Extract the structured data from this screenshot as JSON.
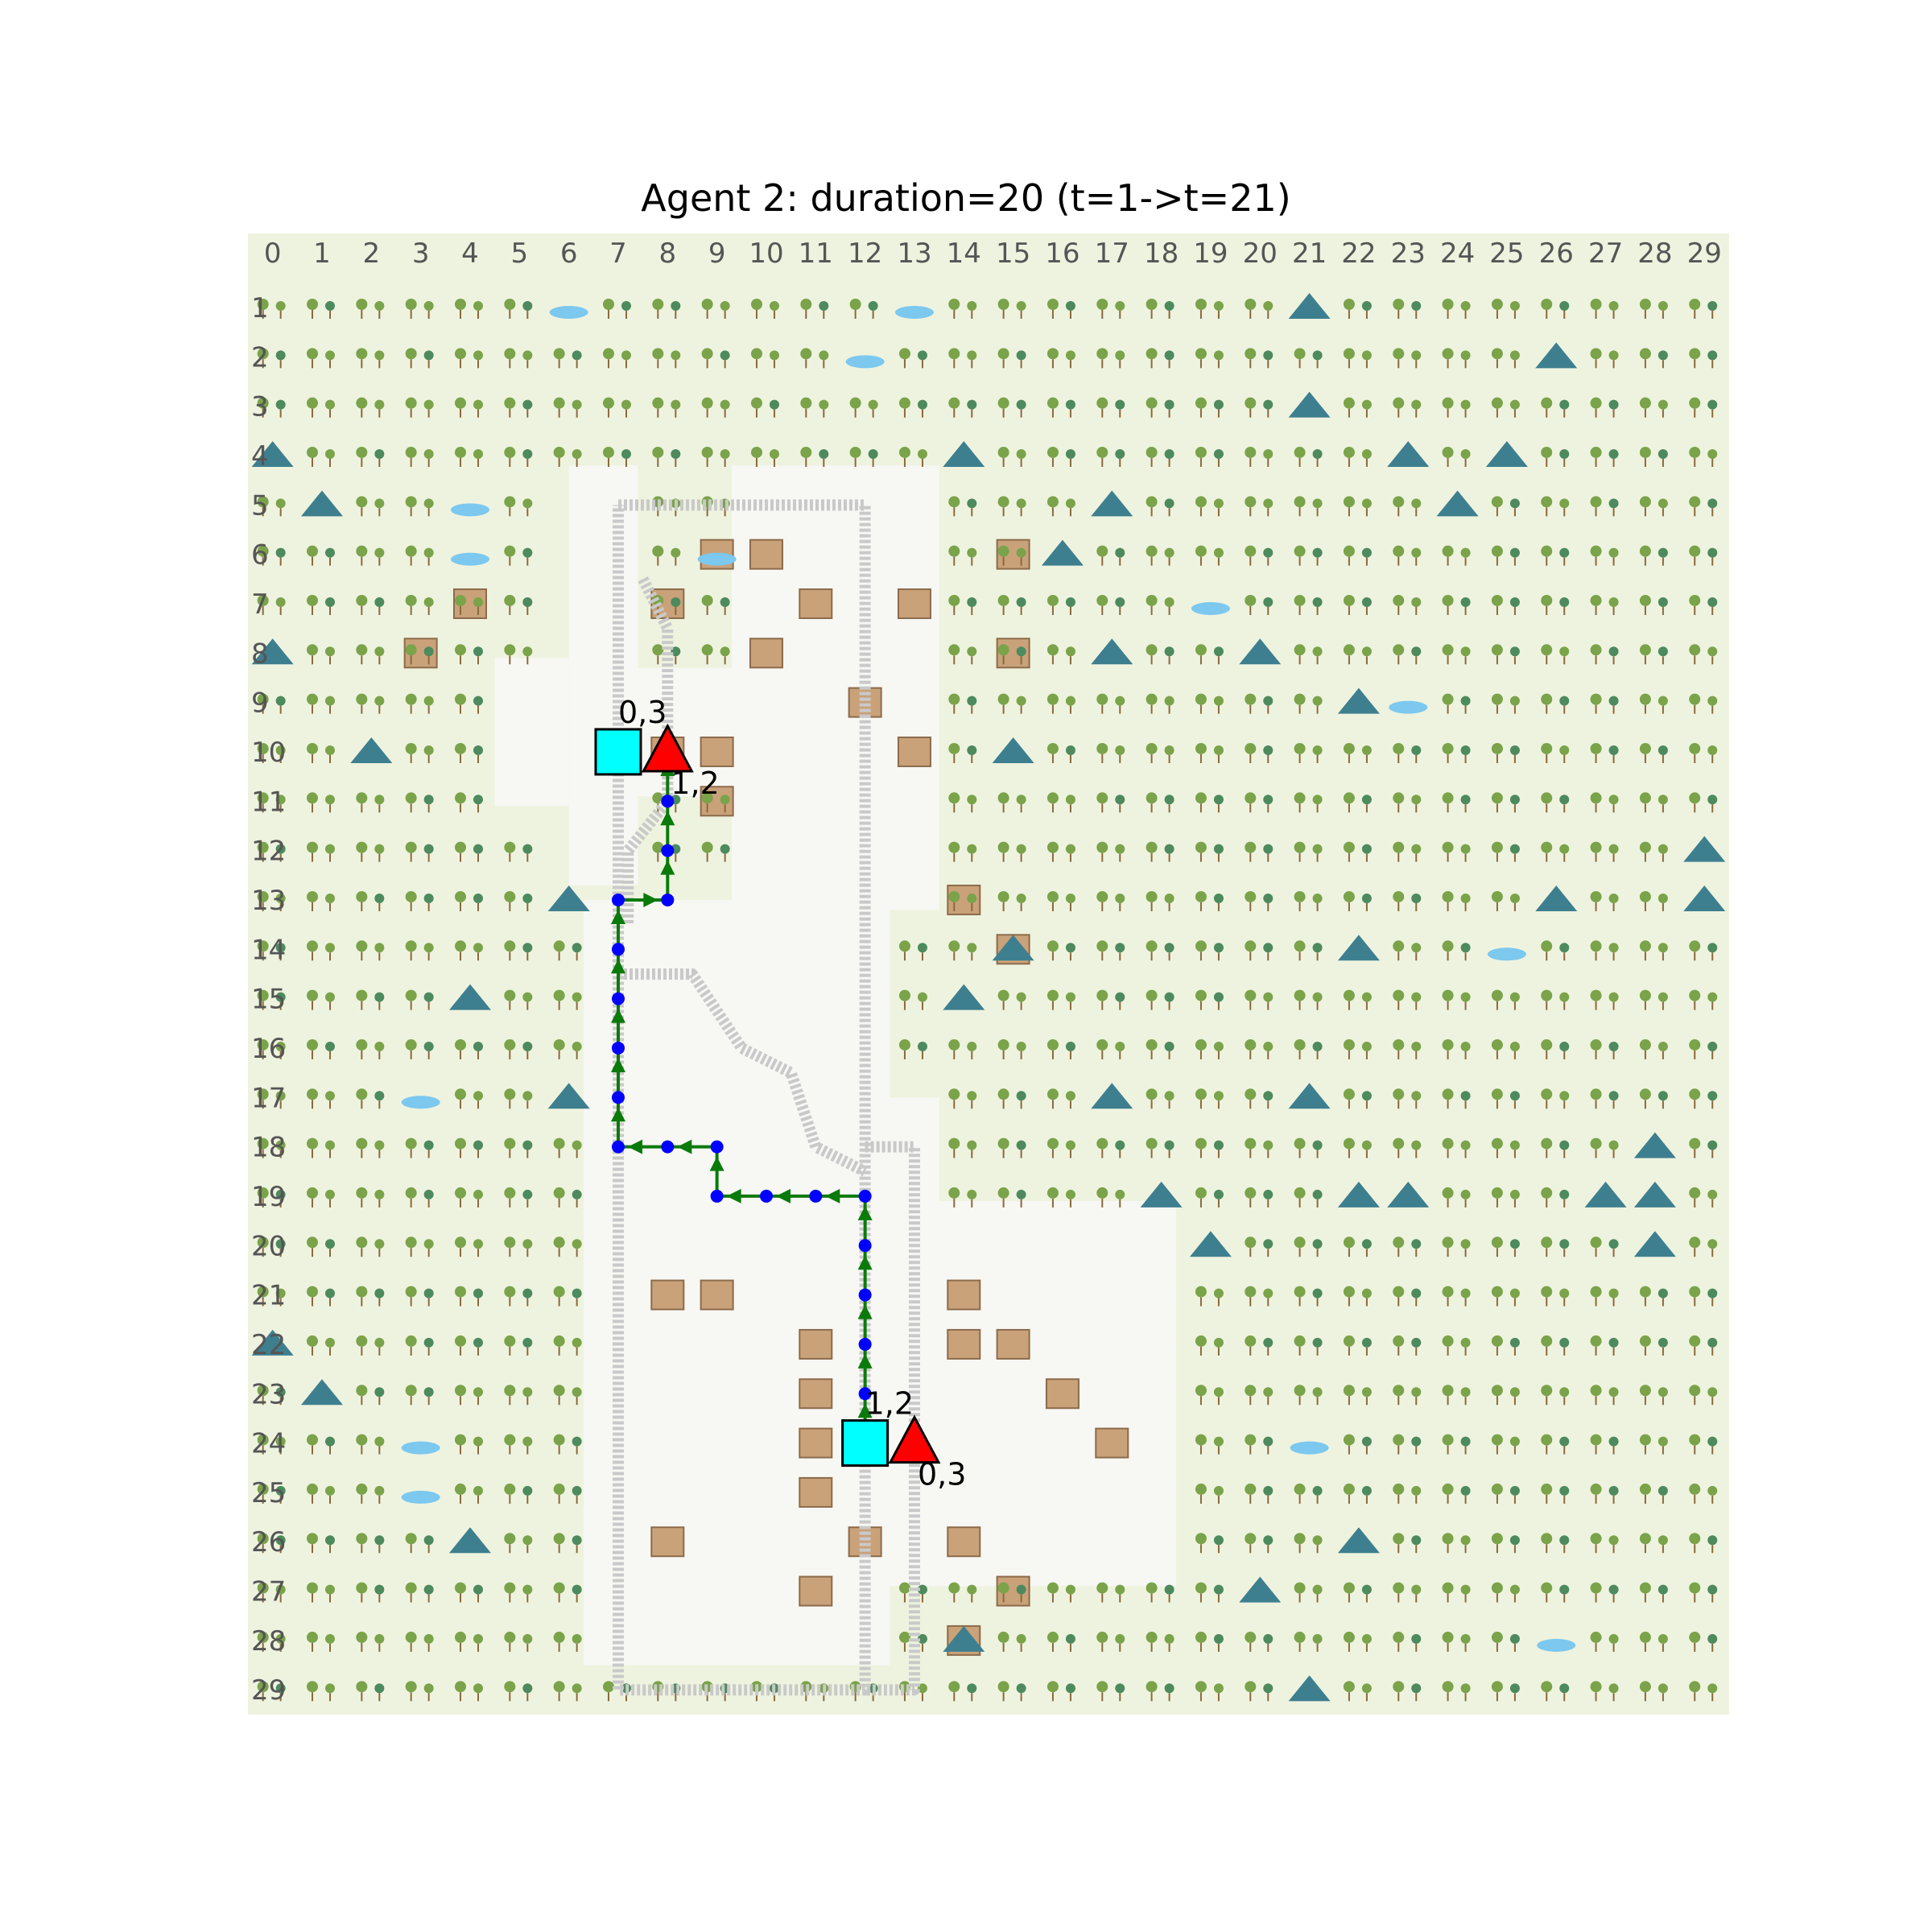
{
  "title": "Agent 2: duration=20 (t=1->t=21)",
  "grid": {
    "cols": 30,
    "rows": 30,
    "col_labels": [
      "0",
      "1",
      "2",
      "3",
      "4",
      "5",
      "6",
      "7",
      "8",
      "9",
      "10",
      "11",
      "12",
      "13",
      "14",
      "15",
      "16",
      "17",
      "18",
      "19",
      "20",
      "21",
      "22",
      "23",
      "24",
      "25",
      "26",
      "27",
      "28",
      "29"
    ],
    "row_labels": [
      "0",
      "1",
      "2",
      "3",
      "4",
      "5",
      "6",
      "7",
      "8",
      "9",
      "10",
      "11",
      "12",
      "13",
      "14",
      "15",
      "16",
      "17",
      "18",
      "19",
      "20",
      "21",
      "22",
      "23",
      "24",
      "25",
      "26",
      "27",
      "28",
      "29"
    ]
  },
  "colors": {
    "terrain": "#eef3df",
    "city": "#f7f7f4",
    "rail": "#c9c9c9",
    "path_line": "#0a7a0a",
    "path_node": "#0000ff",
    "start_marker": "#00ffff",
    "target_marker": "#ff0000",
    "tree": "#7aa34a",
    "tree_dark": "#4d8a5e",
    "mountain": "#3e7f8f",
    "water": "#7cc8ef",
    "building": "#c9a27a"
  },
  "agent": {
    "id": 2,
    "duration": 20,
    "t_start": 1,
    "t_end": 21,
    "path": [
      [
        24,
        12
      ],
      [
        23,
        12
      ],
      [
        22,
        12
      ],
      [
        21,
        12
      ],
      [
        20,
        12
      ],
      [
        19,
        12
      ],
      [
        19,
        11
      ],
      [
        19,
        10
      ],
      [
        19,
        9
      ],
      [
        18,
        9
      ],
      [
        18,
        8
      ],
      [
        18,
        7
      ],
      [
        17,
        7
      ],
      [
        16,
        7
      ],
      [
        15,
        7
      ],
      [
        14,
        7
      ],
      [
        13,
        7
      ],
      [
        13,
        8
      ],
      [
        12,
        8
      ],
      [
        11,
        8
      ],
      [
        10,
        8
      ]
    ]
  },
  "stations": [
    {
      "square_label": "0,3",
      "triangle_label": "1,2",
      "square_cell": [
        10,
        7
      ],
      "triangle_cell": [
        10,
        8
      ]
    },
    {
      "square_label": "1,2",
      "triangle_label": "0,3",
      "square_cell": [
        24,
        12
      ],
      "triangle_cell": [
        24,
        13
      ]
    }
  ]
}
